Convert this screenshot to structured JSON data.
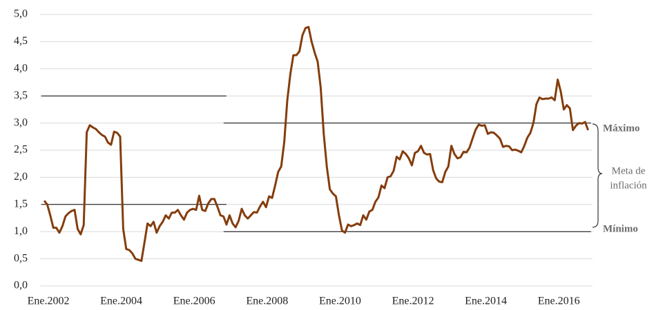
{
  "chart_data": {
    "type": "line",
    "categories": [
      "Ene.2002",
      null,
      null,
      null,
      null,
      null,
      null,
      null,
      null,
      null,
      null,
      null,
      null,
      null,
      null,
      null,
      null,
      null,
      null,
      null,
      null,
      null,
      null,
      null,
      "Ene.2004",
      null,
      null,
      null,
      null,
      null,
      null,
      null,
      null,
      null,
      null,
      null,
      null,
      null,
      null,
      null,
      null,
      null,
      null,
      null,
      null,
      null,
      null,
      null,
      "Ene.2006",
      null,
      null,
      null,
      null,
      null,
      null,
      null,
      null,
      null,
      null,
      null,
      null,
      null,
      null,
      null,
      null,
      null,
      null,
      null,
      null,
      null,
      null,
      null,
      "Ene.2008",
      null,
      null,
      null,
      null,
      null,
      null,
      null,
      null,
      null,
      null,
      null,
      null,
      null,
      null,
      null,
      null,
      null,
      null,
      null,
      null,
      null,
      null,
      null,
      "Ene.2010",
      null,
      null,
      null,
      null,
      null,
      null,
      null,
      null,
      null,
      null,
      null,
      null,
      null,
      null,
      null,
      null,
      null,
      null,
      null,
      null,
      null,
      null,
      null,
      "Ene.2012",
      null,
      null,
      null,
      null,
      null,
      null,
      null,
      null,
      null,
      null,
      null,
      null,
      null,
      null,
      null,
      null,
      null,
      null,
      null,
      null,
      null,
      null,
      null,
      "Ene.2014",
      null,
      null,
      null,
      null,
      null,
      null,
      null,
      null,
      null,
      null,
      null,
      null,
      null,
      null,
      null,
      null,
      null,
      null,
      null,
      null,
      null,
      null,
      null,
      "Ene.2016",
      null,
      null,
      null,
      null,
      null,
      null,
      null,
      null,
      null,
      null,
      null
    ],
    "series": [
      {
        "color": "#843c0c",
        "values": [
          1.57,
          1.5,
          1.3,
          1.07,
          1.07,
          0.98,
          1.1,
          1.28,
          1.34,
          1.38,
          1.4,
          1.05,
          0.95,
          1.12,
          2.83,
          2.96,
          2.92,
          2.89,
          2.83,
          2.78,
          2.75,
          2.64,
          2.6,
          2.84,
          2.82,
          2.75,
          1.05,
          0.68,
          0.66,
          0.6,
          0.5,
          0.48,
          0.46,
          0.8,
          1.15,
          1.1,
          1.18,
          0.98,
          1.1,
          1.18,
          1.3,
          1.24,
          1.35,
          1.35,
          1.4,
          1.3,
          1.22,
          1.35,
          1.4,
          1.42,
          1.4,
          1.66,
          1.4,
          1.38,
          1.52,
          1.6,
          1.6,
          1.46,
          1.3,
          1.28,
          1.13,
          1.3,
          1.15,
          1.08,
          1.2,
          1.42,
          1.3,
          1.24,
          1.3,
          1.36,
          1.35,
          1.46,
          1.55,
          1.45,
          1.65,
          1.62,
          1.85,
          2.1,
          2.2,
          2.65,
          3.42,
          3.9,
          4.25,
          4.25,
          4.32,
          4.62,
          4.75,
          4.77,
          4.5,
          4.3,
          4.13,
          3.65,
          2.8,
          2.2,
          1.78,
          1.7,
          1.65,
          1.3,
          1.02,
          0.98,
          1.13,
          1.1,
          1.12,
          1.15,
          1.12,
          1.3,
          1.22,
          1.37,
          1.4,
          1.55,
          1.63,
          1.85,
          1.8,
          2.0,
          2.02,
          2.12,
          2.38,
          2.33,
          2.48,
          2.43,
          2.35,
          2.22,
          2.45,
          2.48,
          2.58,
          2.45,
          2.42,
          2.43,
          2.13,
          1.98,
          1.92,
          1.91,
          2.1,
          2.2,
          2.58,
          2.43,
          2.35,
          2.37,
          2.47,
          2.46,
          2.55,
          2.72,
          2.88,
          2.97,
          2.95,
          2.96,
          2.8,
          2.83,
          2.82,
          2.77,
          2.71,
          2.56,
          2.58,
          2.57,
          2.5,
          2.51,
          2.49,
          2.46,
          2.58,
          2.73,
          2.82,
          3.0,
          3.35,
          3.47,
          3.44,
          3.45,
          3.45,
          3.47,
          3.42,
          3.8,
          3.58,
          3.25,
          3.33,
          3.27,
          2.87,
          2.95,
          3.0,
          2.99,
          3.02,
          2.87
        ]
      }
    ],
    "bands": [
      {
        "lower": 1.5,
        "upper": 3.5,
        "from": 0,
        "to": 59
      },
      {
        "lower": 1.0,
        "upper": 3.0,
        "from": 60,
        "to": 179
      }
    ],
    "band_color": "#000000",
    "ylim": [
      0,
      5
    ],
    "yticks": [
      {
        "value": 0,
        "label": "0,0"
      },
      {
        "value": 0.5,
        "label": "0,5"
      },
      {
        "value": 1,
        "label": "1,0"
      },
      {
        "value": 1.5,
        "label": "1,5"
      },
      {
        "value": 2,
        "label": "2,0"
      },
      {
        "value": 2.5,
        "label": "2,5"
      },
      {
        "value": 3,
        "label": "3,0"
      },
      {
        "value": 3.5,
        "label": "3,5"
      },
      {
        "value": 4,
        "label": "4,0"
      },
      {
        "value": 4.5,
        "label": "4,5"
      },
      {
        "value": 5,
        "label": "5,0"
      }
    ],
    "grid": true,
    "annotations": {
      "max": "Máximo",
      "target_1": "Meta de",
      "target_2": "inflación",
      "min": "Mínimo"
    }
  }
}
